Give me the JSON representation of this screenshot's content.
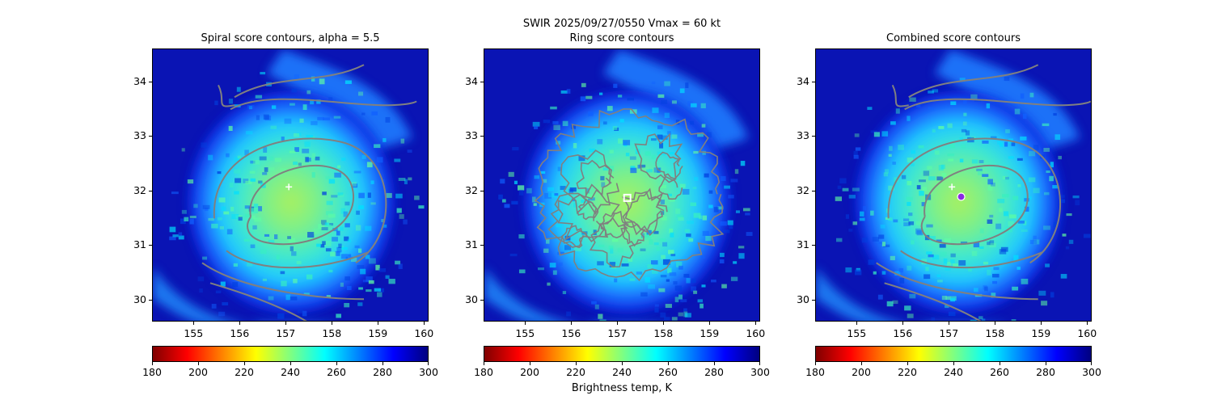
{
  "figure": {
    "suptitle": "SWIR  2025/09/27/0550    Vmax = 60 kt",
    "colorbar_label": "Brightness temp, K"
  },
  "chart_data": [
    {
      "type": "heatmap",
      "title": "Spiral score contours, alpha =  5.5",
      "xlim": [
        154.1,
        160.1
      ],
      "ylim": [
        29.6,
        34.6
      ],
      "xticks": [
        "155",
        "156",
        "157",
        "158",
        "159",
        "160"
      ],
      "yticks": [
        "30",
        "31",
        "32",
        "33",
        "34"
      ],
      "colorbar": {
        "min": 180,
        "max": 300,
        "ticks": [
          "180",
          "200",
          "220",
          "240",
          "260",
          "280",
          "300"
        ],
        "cmap": "jet_r"
      },
      "center_marker": {
        "symbol": "+",
        "lon": 157.05,
        "lat": 32.08,
        "color": "#ffffff"
      },
      "storm_center": {
        "lon": 157.1,
        "lat": 31.8
      },
      "contour_color": "#808080"
    },
    {
      "type": "heatmap",
      "title": "Ring score contours",
      "xlim": [
        154.1,
        160.1
      ],
      "ylim": [
        29.6,
        34.6
      ],
      "xticks": [
        "155",
        "156",
        "157",
        "158",
        "159",
        "160"
      ],
      "yticks": [
        "30",
        "31",
        "32",
        "33",
        "34"
      ],
      "colorbar": {
        "min": 180,
        "max": 300,
        "ticks": [
          "180",
          "200",
          "220",
          "240",
          "260",
          "280",
          "300"
        ],
        "cmap": "jet_r"
      },
      "center_marker": {
        "symbol": "square",
        "lon": 157.2,
        "lat": 31.88,
        "color": "#ffffff"
      },
      "storm_center": {
        "lon": 157.2,
        "lat": 31.8
      },
      "contour_color": "#808080"
    },
    {
      "type": "heatmap",
      "title": "Combined score contours",
      "xlim": [
        154.1,
        160.1
      ],
      "ylim": [
        29.6,
        34.6
      ],
      "xticks": [
        "155",
        "156",
        "157",
        "158",
        "159",
        "160"
      ],
      "yticks": [
        "30",
        "31",
        "32",
        "33",
        "34"
      ],
      "colorbar": {
        "min": 180,
        "max": 300,
        "ticks": [
          "180",
          "200",
          "220",
          "240",
          "260",
          "280",
          "300"
        ],
        "cmap": "jet_r"
      },
      "center_marker": {
        "symbol": "+",
        "lon": 157.05,
        "lat": 32.08,
        "color": "#ffffff"
      },
      "best_estimate": {
        "lon": 157.25,
        "lat": 31.9,
        "color": "#8a2be2"
      },
      "storm_center": {
        "lon": 157.2,
        "lat": 31.8
      },
      "contour_color": "#808080"
    }
  ]
}
